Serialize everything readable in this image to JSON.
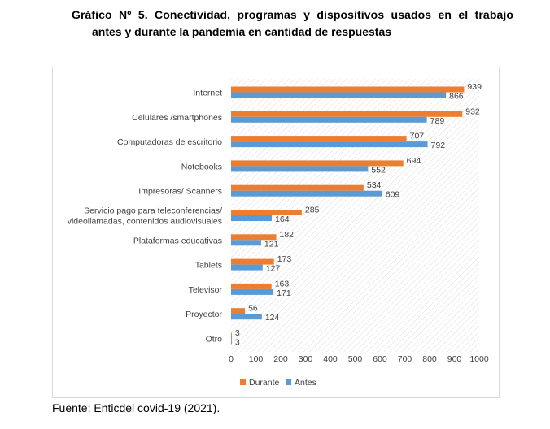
{
  "header": {
    "title_line1": "Gráfico Nº 5. Conectividad, programas y dispositivos usados en el trabajo",
    "title_line2": "antes y durante la pandemia en cantidad de respuestas"
  },
  "footer": {
    "source": "Fuente: Enticdel covid-19 (2021)."
  },
  "colors": {
    "durante": "#ED7D31",
    "antes": "#5B9BD5",
    "grid_hatch": "#d9d9d9"
  },
  "chart_data": {
    "type": "bar",
    "orientation": "horizontal",
    "categories": [
      "Internet",
      "Celulares /smartphones",
      "Computadoras de escritorio",
      "Notebooks",
      "Impresoras/ Scanners",
      "Servicio pago para teleconferencias/ videollamadas, contenidos audiovisuales",
      "Plataformas educativas",
      "Tablets",
      "Televisor",
      "Proyector",
      "Otro"
    ],
    "category_lines": [
      [
        "Internet"
      ],
      [
        "Celulares /smartphones"
      ],
      [
        "Computadoras de escritorio"
      ],
      [
        "Notebooks"
      ],
      [
        "Impresoras/ Scanners"
      ],
      [
        "Servicio pago para teleconferencias/",
        "videollamadas, contenidos audiovisuales"
      ],
      [
        "Plataformas educativas"
      ],
      [
        "Tablets"
      ],
      [
        "Televisor"
      ],
      [
        "Proyector"
      ],
      [
        "Otro"
      ]
    ],
    "series": [
      {
        "name": "Durante",
        "values": [
          939,
          932,
          707,
          694,
          534,
          285,
          182,
          173,
          163,
          56,
          3
        ]
      },
      {
        "name": "Antes",
        "values": [
          866,
          789,
          792,
          552,
          609,
          164,
          121,
          127,
          171,
          124,
          3
        ]
      }
    ],
    "xlim": [
      0,
      1000
    ],
    "xticks": [
      0,
      100,
      200,
      300,
      400,
      500,
      600,
      700,
      800,
      900,
      1000
    ],
    "legend_position": "bottom-left",
    "grid": "hatched background"
  }
}
